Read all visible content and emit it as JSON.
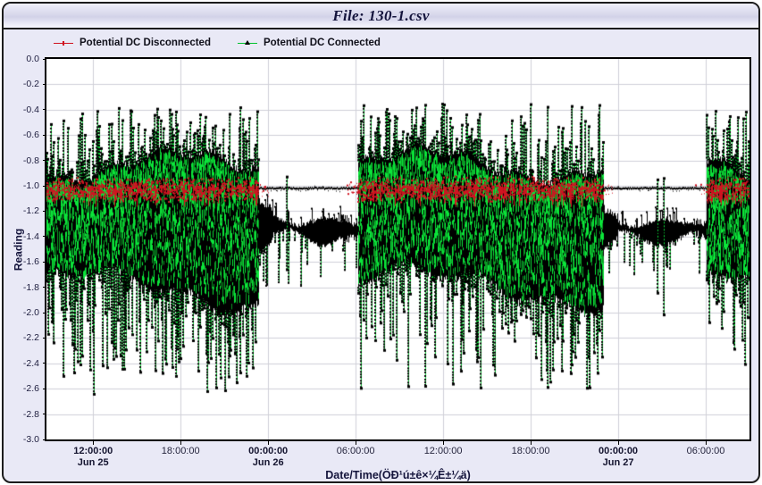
{
  "title_bar": {
    "title": "File: 130-1.csv"
  },
  "legend": {
    "items": [
      {
        "label": "Potential DC Disconnected",
        "color": "#cf1220",
        "marker": "line-with-cross"
      },
      {
        "label": "Potential DC Connected",
        "color": "#00c32e",
        "marker": "line-with-black-triangle"
      }
    ]
  },
  "axes": {
    "y_title": "Reading",
    "x_title": "Date/Time(ÖÐ¹ú±ê×¼Ê±¼ä)",
    "y_tick_labels": [
      "0.0",
      "-0.2",
      "-0.4",
      "-0.6",
      "-0.8",
      "-1.0",
      "-1.2",
      "-1.4",
      "-1.6",
      "-1.8",
      "-2.0",
      "-2.2",
      "-2.4",
      "-2.6",
      "-2.8",
      "-3.0"
    ]
  },
  "chart_data": {
    "type": "scatter",
    "title": "File: 130-1.csv",
    "xlabel": "Date/Time(ÖÐ¹ú±ê×¼Ê±¼ä)",
    "ylabel": "Reading",
    "ylim": [
      -3.0,
      0.0
    ],
    "grid": {
      "horizontal_every": 0.2,
      "vertical_at_ticks": true,
      "color": "#cfcfd8"
    },
    "x_axis_hours_range": [
      8.8,
      57.0
    ],
    "hours_reference": "hours since Jun 25 00:00",
    "x_ticks": [
      {
        "hour": 12,
        "time": "12:00:00",
        "date": "Jun 25",
        "bold": true
      },
      {
        "hour": 18,
        "time": "18:00:00",
        "date": "",
        "bold": false
      },
      {
        "hour": 24,
        "time": "00:00:00",
        "date": "Jun 26",
        "bold": true
      },
      {
        "hour": 30,
        "time": "06:00:00",
        "date": "",
        "bold": false
      },
      {
        "hour": 36,
        "time": "12:00:00",
        "date": "",
        "bold": false
      },
      {
        "hour": 42,
        "time": "18:00:00",
        "date": "",
        "bold": false
      },
      {
        "hour": 48,
        "time": "00:00:00",
        "date": "Jun 27",
        "bold": true
      },
      {
        "hour": 54,
        "time": "06:00:00",
        "date": "",
        "bold": false
      }
    ],
    "series": [
      {
        "name": "Potential DC Disconnected",
        "color": "#d11421",
        "behavior": "red speckle band centered -1.03 (±0.09) during active periods; coincides with flat -1.02 line during idle periods, visible fringes at idle boundaries"
      },
      {
        "name": "Potential DC Connected",
        "color": "#0be53a",
        "marker_color": "#000000",
        "behavior": "dense black/green noise mass -0.75..-1.95 with green spikes (black dot markers) up to -0.35 and down to -2.65 during active periods; during idle: flat line -1.02 plus noisy band -1.33 ±0.1 with green drops to ~-2.0"
      }
    ],
    "segments": [
      {
        "state": "active",
        "start_hour": 8.8,
        "end_hour": 23.35,
        "top_band": [
          -0.72,
          -0.95
        ],
        "bottom_band": [
          -1.68,
          -1.98
        ],
        "spikes_up_to": -0.38,
        "spikes_down_to": -2.65,
        "red_band_center": -1.03,
        "red_band_halfwidth": 0.08
      },
      {
        "state": "idle",
        "start_hour": 23.35,
        "end_hour": 30.15,
        "flat_line": -1.02,
        "band_center": -1.33,
        "band_halfwidth": 0.09,
        "spikes_down_to": -2.05,
        "rare_spike_top": -0.88
      },
      {
        "state": "active",
        "start_hour": 30.15,
        "end_hour": 47.0,
        "top_band": [
          -0.7,
          -0.95
        ],
        "bottom_band": [
          -1.66,
          -1.96
        ],
        "spikes_up_to": -0.35,
        "spikes_down_to": -2.6,
        "red_band_center": -1.03,
        "red_band_halfwidth": 0.08
      },
      {
        "state": "idle",
        "start_hour": 47.0,
        "end_hour": 54.05,
        "flat_line": -1.02,
        "band_center": -1.34,
        "band_halfwidth": 0.09,
        "spikes_down_to": -2.05,
        "rare_spike_top": -0.9
      },
      {
        "state": "active",
        "start_hour": 54.05,
        "end_hour": 57.0,
        "top_band": [
          -0.74,
          -0.95
        ],
        "bottom_band": [
          -1.7,
          -1.95
        ],
        "spikes_up_to": -0.4,
        "spikes_down_to": -2.45,
        "red_band_center": -1.03,
        "red_band_halfwidth": 0.08
      }
    ]
  }
}
